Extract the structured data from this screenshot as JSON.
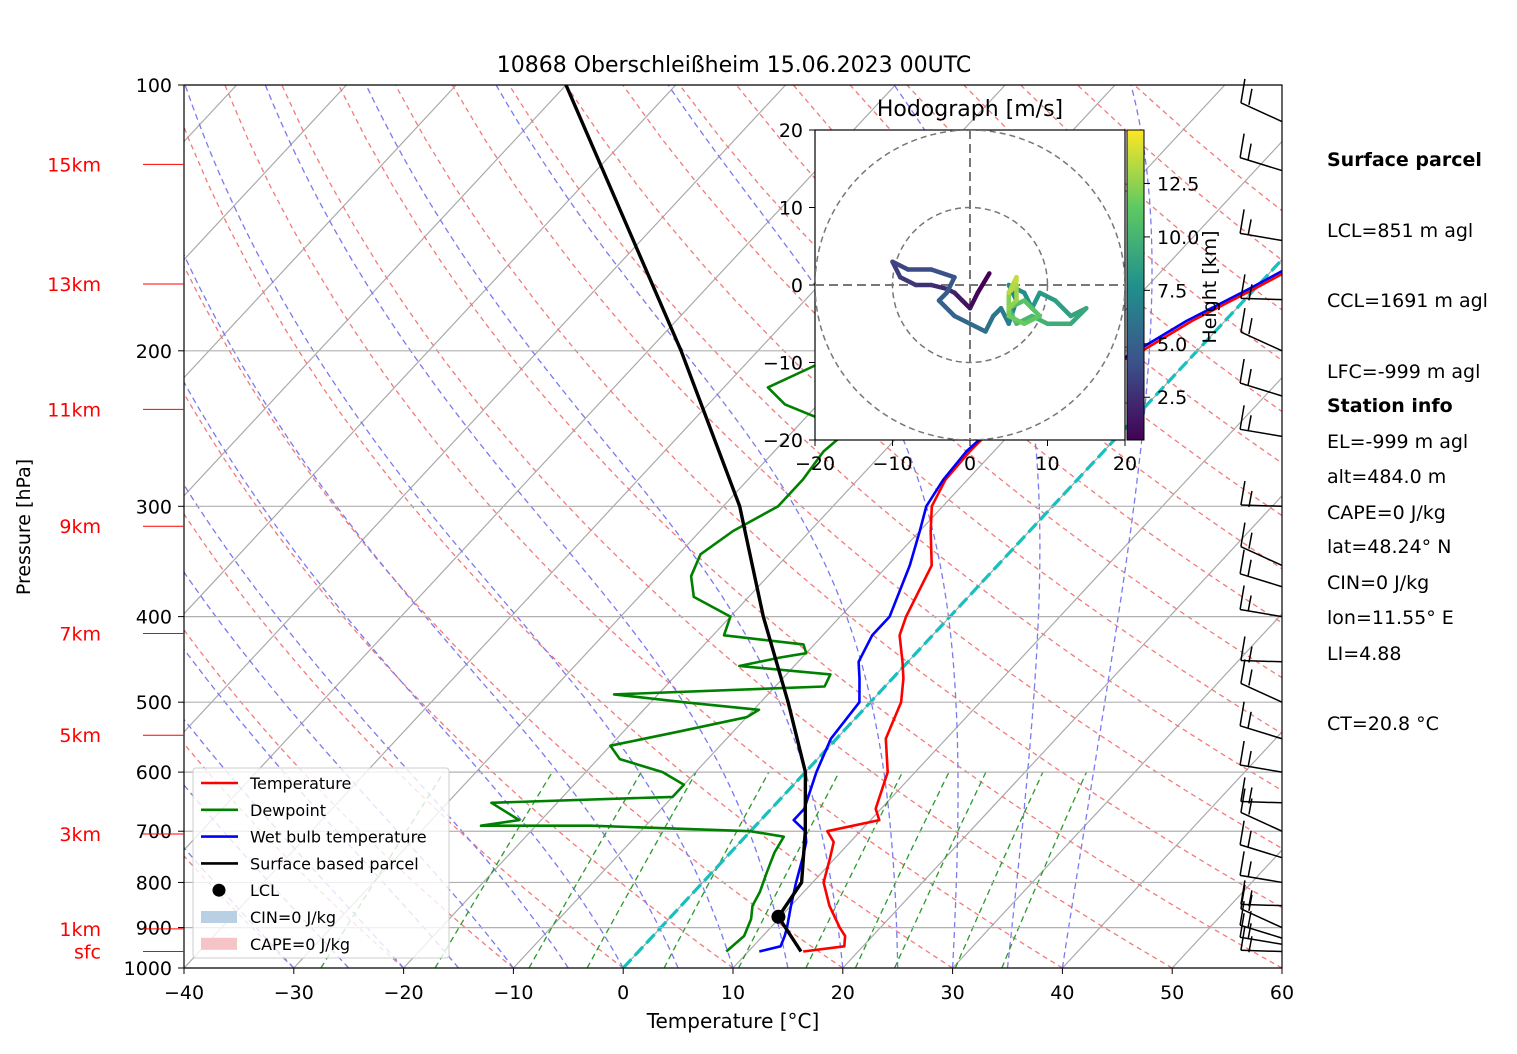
{
  "chart_data": {
    "type": "line",
    "title": "10868 Oberschleißheim 15.06.2023 00UTC",
    "xlabel": "Temperature [°C]",
    "ylabel": "Pressure [hPa]",
    "xlim": [
      -40,
      60
    ],
    "ylim": [
      1000,
      100
    ],
    "y_log_scale": true,
    "grid": true,
    "x_ticks": [
      -40,
      -30,
      -20,
      -10,
      0,
      10,
      20,
      30,
      40,
      50,
      60
    ],
    "y_ticks": [
      1000,
      900,
      800,
      700,
      600,
      500,
      400,
      300,
      200,
      100
    ],
    "height_labels": [
      {
        "label": "sfc",
        "pressure": 958
      },
      {
        "label": "1km",
        "pressure": 903
      },
      {
        "label": "3km",
        "pressure": 705
      },
      {
        "label": "5km",
        "pressure": 545
      },
      {
        "label": "7km",
        "pressure": 418
      },
      {
        "label": "9km",
        "pressure": 316
      },
      {
        "label": "11km",
        "pressure": 233
      },
      {
        "label": "13km",
        "pressure": 168
      },
      {
        "label": "15km",
        "pressure": 123
      }
    ],
    "series": [
      {
        "name": "Temperature",
        "color": "#ff0000",
        "points": [
          [
            958,
            15
          ],
          [
            945,
            18.3
          ],
          [
            920,
            17.5
          ],
          [
            900,
            16.3
          ],
          [
            850,
            13.5
          ],
          [
            800,
            11
          ],
          [
            750,
            9.5
          ],
          [
            720,
            8.5
          ],
          [
            700,
            7
          ],
          [
            680,
            10.8
          ],
          [
            660,
            9.5
          ],
          [
            600,
            7.5
          ],
          [
            550,
            4.5
          ],
          [
            500,
            2.8
          ],
          [
            470,
            1
          ],
          [
            450,
            -0.5
          ],
          [
            420,
            -3
          ],
          [
            400,
            -4
          ],
          [
            350,
            -6
          ],
          [
            320,
            -9
          ],
          [
            300,
            -11
          ],
          [
            280,
            -12
          ],
          [
            260,
            -12.2
          ],
          [
            240,
            -12
          ],
          [
            225,
            -11
          ],
          [
            210,
            -7
          ],
          [
            200,
            -5
          ],
          [
            185,
            -3
          ],
          [
            170,
            0
          ],
          [
            155,
            3
          ],
          [
            145,
            5.5
          ],
          [
            135,
            6.5
          ],
          [
            125,
            7.5
          ],
          [
            120,
            8
          ]
        ]
      },
      {
        "name": "Dewpoint",
        "color": "#008000",
        "points": [
          [
            958,
            8
          ],
          [
            920,
            8.3
          ],
          [
            880,
            7.5
          ],
          [
            850,
            6.5
          ],
          [
            820,
            6
          ],
          [
            780,
            5
          ],
          [
            760,
            4.5
          ],
          [
            740,
            4
          ],
          [
            710,
            3.5
          ],
          [
            700,
            0
          ],
          [
            690,
            -15
          ],
          [
            690,
            -25
          ],
          [
            680,
            -22
          ],
          [
            650,
            -26
          ],
          [
            640,
            -10
          ],
          [
            620,
            -10
          ],
          [
            600,
            -13
          ],
          [
            580,
            -18
          ],
          [
            560,
            -20
          ],
          [
            540,
            -15
          ],
          [
            520,
            -10
          ],
          [
            510,
            -9.5
          ],
          [
            500,
            -17
          ],
          [
            490,
            -24
          ],
          [
            480,
            -5.5
          ],
          [
            465,
            -6
          ],
          [
            455,
            -15
          ],
          [
            445,
            -12
          ],
          [
            440,
            -10
          ],
          [
            430,
            -11
          ],
          [
            420,
            -19
          ],
          [
            400,
            -20
          ],
          [
            380,
            -25
          ],
          [
            360,
            -27
          ],
          [
            340,
            -28
          ],
          [
            320,
            -27
          ],
          [
            300,
            -25
          ],
          [
            280,
            -25
          ],
          [
            260,
            -25.5
          ],
          [
            245,
            -25
          ],
          [
            240,
            -28
          ],
          [
            230,
            -33
          ],
          [
            220,
            -36
          ],
          [
            210,
            -34
          ],
          [
            200,
            -32
          ],
          [
            190,
            -32.5
          ],
          [
            180,
            -32
          ],
          [
            170,
            -31
          ],
          [
            160,
            -29
          ],
          [
            150,
            -28
          ],
          [
            140,
            -27
          ],
          [
            130,
            -26
          ],
          [
            120,
            -25
          ]
        ]
      },
      {
        "name": "Wet bulb temperature",
        "color": "#0000ff",
        "points": [
          [
            958,
            11
          ],
          [
            945,
            12.5
          ],
          [
            920,
            12
          ],
          [
            900,
            11.5
          ],
          [
            850,
            10
          ],
          [
            800,
            8.5
          ],
          [
            750,
            7
          ],
          [
            720,
            6
          ],
          [
            700,
            5
          ],
          [
            680,
            3
          ],
          [
            660,
            3
          ],
          [
            600,
            1
          ],
          [
            550,
            -0.5
          ],
          [
            500,
            -1
          ],
          [
            470,
            -3
          ],
          [
            450,
            -4.5
          ],
          [
            420,
            -5.5
          ],
          [
            400,
            -5.5
          ],
          [
            350,
            -8
          ],
          [
            320,
            -10
          ],
          [
            300,
            -11.5
          ],
          [
            280,
            -12.2
          ],
          [
            260,
            -12.5
          ],
          [
            240,
            -12
          ],
          [
            225,
            -11
          ],
          [
            210,
            -7
          ],
          [
            200,
            -5.5
          ],
          [
            185,
            -3.5
          ],
          [
            170,
            -0.5
          ],
          [
            155,
            2.5
          ],
          [
            145,
            5
          ],
          [
            135,
            6
          ],
          [
            125,
            7
          ],
          [
            120,
            7.5
          ]
        ]
      },
      {
        "name": "Surface based parcel",
        "color": "#000000",
        "points": [
          [
            958,
            14.8
          ],
          [
            875,
            9.8
          ],
          [
            800,
            9
          ],
          [
            700,
            5
          ],
          [
            600,
            0
          ],
          [
            500,
            -7.5
          ],
          [
            400,
            -17
          ],
          [
            300,
            -28.5
          ],
          [
            200,
            -47
          ],
          [
            100,
            -80
          ]
        ]
      }
    ],
    "lcl": {
      "pressure": 875,
      "temperature": 9.8,
      "name": "LCL"
    },
    "legend": {
      "placement": "lower-left",
      "entries": [
        "Temperature",
        "Dewpoint",
        "Wet bulb temperature",
        "Surface based parcel",
        "LCL",
        "CIN=0 J/kg",
        "CAPE=0 J/kg"
      ]
    },
    "hodograph": {
      "title": "Hodograph [m/s]",
      "xlim": [
        -20,
        20
      ],
      "ylim": [
        -20,
        20
      ],
      "ticks": [
        -20,
        -10,
        0,
        10,
        20
      ],
      "rings": [
        10,
        20
      ],
      "colorbar_label": "Height [km]",
      "colorbar_ticks": [
        2.5,
        5.0,
        7.5,
        10.0,
        12.5
      ],
      "colorbar_range": [
        0.5,
        15
      ],
      "points": [
        [
          2.5,
          1.5,
          0.5
        ],
        [
          1,
          -1,
          0.8
        ],
        [
          0,
          -3,
          1.2
        ],
        [
          -1,
          -2,
          1.6
        ],
        [
          -2,
          -1,
          2.0
        ],
        [
          -3,
          -0.5,
          2.3
        ],
        [
          -5,
          0,
          2.6
        ],
        [
          -7,
          0,
          2.9
        ],
        [
          -9,
          1,
          3.2
        ],
        [
          -10,
          3,
          3.5
        ],
        [
          -8,
          2,
          3.8
        ],
        [
          -5,
          2,
          4.1
        ],
        [
          -2,
          1,
          4.4
        ],
        [
          -3,
          -1,
          4.7
        ],
        [
          -4,
          -2,
          5.0
        ],
        [
          -2,
          -4,
          5.3
        ],
        [
          0,
          -5,
          5.6
        ],
        [
          2,
          -6,
          5.9
        ],
        [
          3,
          -4,
          6.2
        ],
        [
          4,
          -3,
          6.5
        ],
        [
          5,
          -5,
          6.8
        ],
        [
          6,
          -2,
          7.1
        ],
        [
          5,
          0,
          7.4
        ],
        [
          7,
          -1,
          7.7
        ],
        [
          8,
          -3,
          8.0
        ],
        [
          9,
          -1,
          8.3
        ],
        [
          11,
          -2,
          8.6
        ],
        [
          13,
          -4,
          8.9
        ],
        [
          15,
          -3,
          9.2
        ],
        [
          13,
          -5,
          9.5
        ],
        [
          10,
          -5,
          9.8
        ],
        [
          8,
          -4,
          10.1
        ],
        [
          6,
          -5,
          10.4
        ],
        [
          5,
          -3,
          10.7
        ],
        [
          7,
          -2,
          11.0
        ],
        [
          9,
          -4,
          11.3
        ],
        [
          7,
          -5,
          11.6
        ],
        [
          5,
          -4,
          11.9
        ],
        [
          5,
          -1,
          12.2
        ],
        [
          5,
          -3,
          12.5
        ],
        [
          6,
          -2,
          12.8
        ],
        [
          6,
          0,
          13.1
        ],
        [
          5,
          -1,
          13.4
        ],
        [
          6,
          1,
          13.7
        ],
        [
          6,
          0.5,
          14.0
        ]
      ]
    },
    "wind_barbs_pressures": [
      958,
      940,
      925,
      900,
      850,
      800,
      750,
      700,
      650,
      600,
      550,
      500,
      450,
      400,
      370,
      350,
      300,
      250,
      225,
      200,
      175,
      150,
      125,
      110
    ]
  },
  "surface_parcel": {
    "title": "Surface parcel",
    "lines": [
      "LCL=851 m agl",
      "CCL=1691 m agl",
      "LFC=-999 m agl",
      "EL=-999 m agl",
      "CAPE=0 J/kg",
      "CIN=0 J/kg",
      "LI=4.88",
      "CT=20.8 °C"
    ]
  },
  "station_info": {
    "title": "Station info",
    "lines": [
      "alt=484.0 m",
      "lat=48.24° N",
      "lon=11.55° E"
    ]
  }
}
